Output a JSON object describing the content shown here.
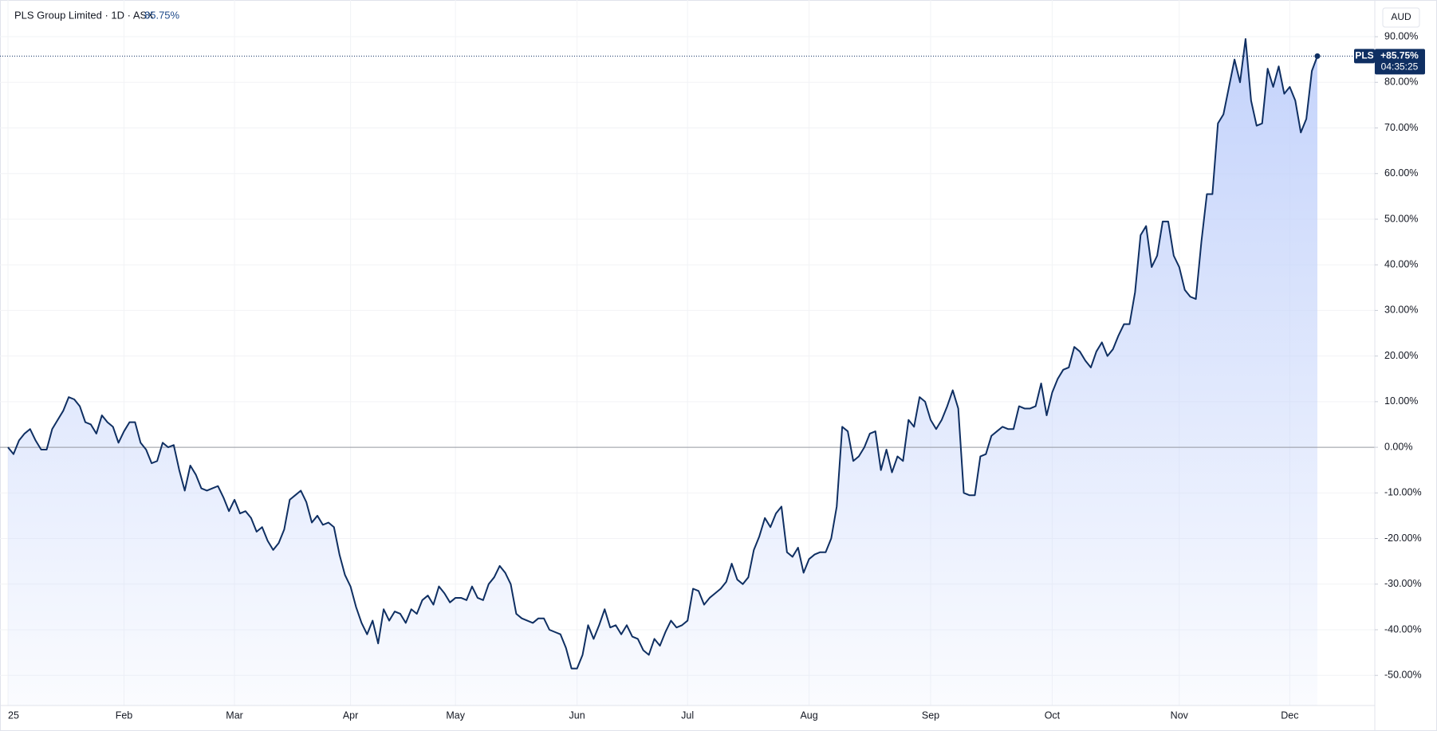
{
  "header": {
    "title": "PLS Group Limited · 1D · ASX",
    "change": "85.75%"
  },
  "price_tag": {
    "change": "+85.75%",
    "countdown": "04:35:25"
  },
  "chart_data": {
    "type": "area",
    "currency": "AUD",
    "categories": [
      "25",
      null,
      null,
      null,
      null,
      null,
      null,
      null,
      null,
      null,
      null,
      null,
      null,
      null,
      null,
      null,
      null,
      null,
      null,
      null,
      null,
      "Feb",
      null,
      null,
      null,
      null,
      null,
      null,
      null,
      null,
      null,
      null,
      null,
      null,
      null,
      null,
      null,
      null,
      null,
      null,
      null,
      "Mar",
      null,
      null,
      null,
      null,
      null,
      null,
      null,
      null,
      null,
      null,
      null,
      null,
      null,
      null,
      null,
      null,
      null,
      null,
      null,
      null,
      "Apr",
      null,
      null,
      null,
      null,
      null,
      null,
      null,
      null,
      null,
      null,
      null,
      null,
      null,
      null,
      null,
      null,
      null,
      null,
      "May",
      null,
      null,
      null,
      null,
      null,
      null,
      null,
      null,
      null,
      null,
      null,
      null,
      null,
      null,
      null,
      null,
      null,
      null,
      null,
      null,
      null,
      "Jun",
      null,
      null,
      null,
      null,
      null,
      null,
      null,
      null,
      null,
      null,
      null,
      null,
      null,
      null,
      null,
      null,
      null,
      null,
      null,
      "Jul",
      null,
      null,
      null,
      null,
      null,
      null,
      null,
      null,
      null,
      null,
      null,
      null,
      null,
      null,
      null,
      null,
      null,
      null,
      null,
      null,
      null,
      "Aug",
      null,
      null,
      null,
      null,
      null,
      null,
      null,
      null,
      null,
      null,
      null,
      null,
      null,
      null,
      null,
      null,
      null,
      null,
      null,
      null,
      null,
      "Sep",
      null,
      null,
      null,
      null,
      null,
      null,
      null,
      null,
      null,
      null,
      null,
      null,
      null,
      null,
      null,
      null,
      null,
      null,
      null,
      null,
      null,
      "Oct",
      null,
      null,
      null,
      null,
      null,
      null,
      null,
      null,
      null,
      null,
      null,
      null,
      null,
      null,
      null,
      null,
      null,
      null,
      null,
      null,
      null,
      null,
      "Nov",
      null,
      null,
      null,
      null,
      null,
      null,
      null,
      null,
      null,
      null,
      null,
      null,
      null,
      null,
      null,
      null,
      null,
      null,
      null,
      "Dec",
      null,
      null,
      null,
      null,
      null
    ],
    "series": [
      {
        "name": "PLS",
        "color": "#0f2f62",
        "values": [
          0,
          -1.5,
          1.5,
          3,
          4,
          1.5,
          -0.5,
          -0.5,
          4,
          6,
          8,
          11,
          10.5,
          9,
          5.5,
          5,
          3,
          7,
          5.5,
          4.5,
          1,
          3.5,
          5.5,
          5.5,
          1,
          -0.5,
          -3.5,
          -3,
          1,
          0,
          0.5,
          -5,
          -9.5,
          -4,
          -6,
          -9,
          -9.5,
          -9,
          -8.5,
          -11,
          -14,
          -11.5,
          -14.5,
          -14,
          -15.5,
          -18.5,
          -17.5,
          -20.5,
          -22.5,
          -21,
          -18,
          -11.5,
          -10.5,
          -9.5,
          -12,
          -16.5,
          -15,
          -17,
          -16.5,
          -17.5,
          -23.5,
          -28,
          -30.5,
          -35,
          -38.5,
          -41,
          -38,
          -43,
          -35.5,
          -38,
          -36,
          -36.5,
          -38.5,
          -35.5,
          -36.5,
          -33.5,
          -32.5,
          -34.5,
          -30.5,
          -32,
          -34,
          -33,
          -33,
          -33.5,
          -30.5,
          -33,
          -33.5,
          -30,
          -28.5,
          -26,
          -27.5,
          -30,
          -36.5,
          -37.5,
          -38,
          -38.5,
          -37.5,
          -37.5,
          -40,
          -40.5,
          -41,
          -44,
          -48.5,
          -48.5,
          -45.5,
          -39,
          -42,
          -39,
          -35.5,
          -39.5,
          -39,
          -41,
          -39,
          -41.5,
          -42,
          -44.5,
          -45.5,
          -42,
          -43.5,
          -40.5,
          -38,
          -39.5,
          -39,
          -38,
          -31,
          -31.5,
          -34.5,
          -33,
          -32,
          -31,
          -29.5,
          -25.5,
          -29,
          -30,
          -28.5,
          -22.5,
          -19.5,
          -15.5,
          -17.5,
          -14.5,
          -13,
          -23,
          -24,
          -22,
          -27.5,
          -24.5,
          -23.5,
          -23,
          -23,
          -20,
          -13,
          4.5,
          3.5,
          -3,
          -2,
          0,
          3,
          3.5,
          -5,
          -0.5,
          -5.5,
          -2,
          -3,
          6,
          4.5,
          11,
          10,
          6,
          4,
          6,
          9,
          12.5,
          8.5,
          -10,
          -10.5,
          -10.5,
          -2,
          -1.5,
          2.5,
          3.5,
          4.5,
          4,
          4,
          9,
          8.5,
          8.5,
          9,
          14,
          7,
          12,
          15,
          17,
          17.5,
          22,
          21,
          19,
          17.5,
          21,
          23,
          20,
          21.5,
          24.5,
          27,
          27,
          34,
          46.5,
          48.5,
          39.5,
          42,
          49.5,
          49.5,
          42,
          39.5,
          34.5,
          33,
          32.5,
          45,
          55.5,
          55.5,
          71,
          73,
          79,
          85,
          80,
          89.5,
          76,
          70.5,
          71,
          83,
          79,
          83.5,
          77.5,
          79,
          76,
          69,
          72,
          82.5,
          85.75
        ]
      }
    ],
    "ylim": [
      -56.6,
      97
    ],
    "yticks": [
      {
        "value": -50,
        "label": "-50.00%"
      },
      {
        "value": -40,
        "label": "-40.00%"
      },
      {
        "value": -30,
        "label": "-30.00%"
      },
      {
        "value": -20,
        "label": "-20.00%"
      },
      {
        "value": -10,
        "label": "-10.00%"
      },
      {
        "value": 0,
        "label": "0.00%"
      },
      {
        "value": 10,
        "label": "10.00%"
      },
      {
        "value": 20,
        "label": "20.00%"
      },
      {
        "value": 30,
        "label": "30.00%"
      },
      {
        "value": 40,
        "label": "40.00%"
      },
      {
        "value": 50,
        "label": "50.00%"
      },
      {
        "value": 60,
        "label": "60.00%"
      },
      {
        "value": 70,
        "label": "70.00%"
      },
      {
        "value": 80,
        "label": "80.00%"
      },
      {
        "value": 90,
        "label": "90.00%"
      }
    ],
    "grid": true,
    "baseline": 0
  }
}
